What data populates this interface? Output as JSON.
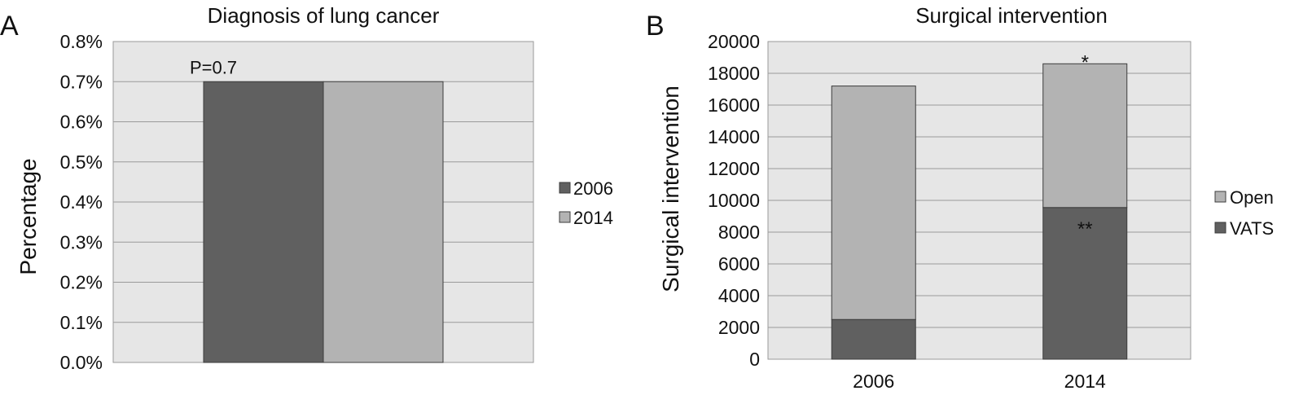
{
  "panels": {
    "a": {
      "letter": "A"
    },
    "b": {
      "letter": "B"
    }
  },
  "colors": {
    "plot_bg": "#e6e6e6",
    "grid": "#9a9a9a",
    "dark": "#606060",
    "light": "#b3b3b3",
    "outline": "#3c3c3c"
  },
  "chart_data": [
    {
      "type": "bar",
      "title": "Diagnosis of lung cancer",
      "xlabel": "",
      "ylabel": "Percentage",
      "ylim": [
        0,
        0.8
      ],
      "yticks": [
        "0.0%",
        "0.1%",
        "0.2%",
        "0.3%",
        "0.4%",
        "0.5%",
        "0.6%",
        "0.7%",
        "0.8%"
      ],
      "categories": [
        ""
      ],
      "series": [
        {
          "name": "2006",
          "values": [
            0.7
          ],
          "color": "#606060"
        },
        {
          "name": "2014",
          "values": [
            0.7
          ],
          "color": "#b3b3b3"
        }
      ],
      "annotation": "P=0.7",
      "legend": "right",
      "grid": true
    },
    {
      "type": "bar",
      "stacked": true,
      "title": "Surgical intervention",
      "xlabel": "",
      "ylabel": "Surgical intervention",
      "ylim": [
        0,
        20000
      ],
      "yticks": [
        "0",
        "2000",
        "4000",
        "6000",
        "8000",
        "10000",
        "12000",
        "14000",
        "16000",
        "18000",
        "20000"
      ],
      "categories": [
        "2006",
        "2014"
      ],
      "series": [
        {
          "name": "VATS",
          "values": [
            2500,
            9550
          ],
          "color": "#606060"
        },
        {
          "name": "Open",
          "values": [
            14700,
            9050
          ],
          "color": "#b3b3b3"
        }
      ],
      "annotations": [
        {
          "text": "*",
          "category": "2014",
          "series": "Open"
        },
        {
          "text": "**",
          "category": "2014",
          "series": "VATS"
        }
      ],
      "legend_order": [
        "Open",
        "VATS"
      ],
      "legend": "right",
      "grid": true
    }
  ]
}
